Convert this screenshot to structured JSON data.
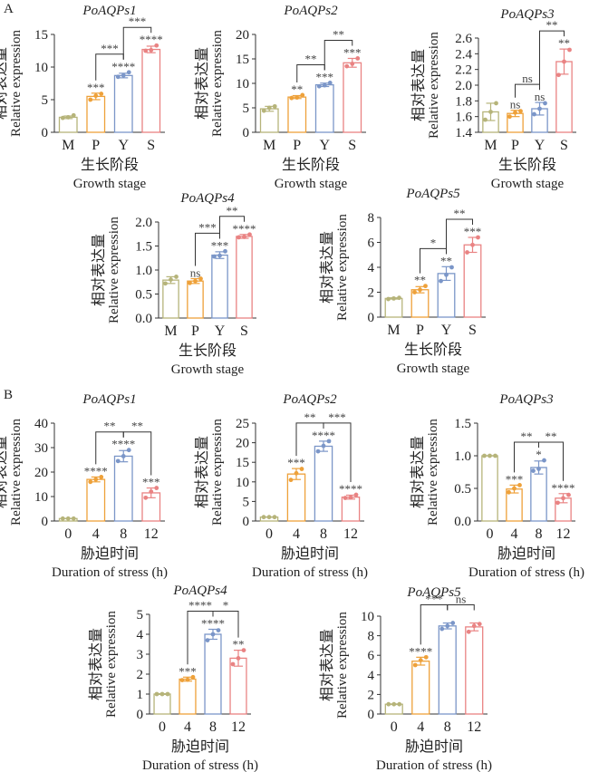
{
  "figure": {
    "panel_labels": [
      "A",
      "B"
    ]
  },
  "colors": {
    "M": "#b6b47a",
    "P": "#eea13a",
    "Y": "#7b96c8",
    "S": "#e98383",
    "0": "#b6b47a",
    "4": "#eea13a",
    "8": "#7b96c8",
    "12": "#e98383"
  },
  "chart_data": [
    {
      "panel": "A",
      "type": "bar",
      "title": "PoAQPs1",
      "categories": [
        "M",
        "P",
        "Y",
        "S"
      ],
      "values": [
        2.3,
        5.5,
        8.7,
        12.7
      ],
      "points": [
        [
          2.2,
          2.3,
          2.6
        ],
        [
          5.0,
          5.6,
          5.9
        ],
        [
          8.5,
          8.7,
          9.2
        ],
        [
          12.5,
          12.6,
          13.3
        ]
      ],
      "errors": [
        0.2,
        0.5,
        0.35,
        0.5
      ],
      "yticks": [
        0,
        5,
        10,
        15
      ],
      "ylim": [
        0,
        15
      ],
      "ylabel_cn": "相对表达量",
      "ylabel": "Relative expression",
      "xlabel_cn": "生长阶段",
      "xlabel": "Growth stage",
      "sig_above": [
        "",
        "***",
        "****",
        "****"
      ],
      "brackets": [
        {
          "from": 1,
          "to": 2,
          "label": "***"
        },
        {
          "from": 2,
          "to": 3,
          "label": "***"
        }
      ]
    },
    {
      "panel": "A",
      "type": "bar",
      "title": "PoAQPs2",
      "categories": [
        "M",
        "P",
        "Y",
        "S"
      ],
      "values": [
        4.8,
        7.2,
        9.7,
        14.2
      ],
      "points": [
        [
          4.4,
          5.0,
          5.3
        ],
        [
          7.0,
          7.1,
          7.6
        ],
        [
          9.4,
          9.6,
          10.1
        ],
        [
          13.5,
          14.0,
          15.1
        ]
      ],
      "errors": [
        0.5,
        0.3,
        0.35,
        0.9
      ],
      "yticks": [
        0,
        5,
        10,
        15,
        20
      ],
      "ylim": [
        0,
        20
      ],
      "ylabel_cn": "相对表达量",
      "ylabel": "Relative expression",
      "xlabel_cn": "生长阶段",
      "xlabel": "Growth stage",
      "sig_above": [
        "",
        "**",
        "***",
        "***"
      ],
      "brackets": [
        {
          "from": 1,
          "to": 2,
          "label": "**"
        },
        {
          "from": 2,
          "to": 3,
          "label": "**"
        }
      ]
    },
    {
      "panel": "A",
      "type": "bar",
      "title": "PoAQPs3",
      "categories": [
        "M",
        "P",
        "Y",
        "S"
      ],
      "values": [
        1.66,
        1.64,
        1.7,
        2.3
      ],
      "points": [
        [
          1.56,
          1.66,
          1.77
        ],
        [
          1.6,
          1.65,
          1.67
        ],
        [
          1.63,
          1.7,
          1.77
        ],
        [
          2.13,
          2.3,
          2.45
        ]
      ],
      "errors": [
        0.11,
        0.04,
        0.08,
        0.16
      ],
      "yticks": [
        1.4,
        1.6,
        1.8,
        2.0,
        2.2,
        2.4,
        2.6
      ],
      "ylim": [
        1.4,
        2.6
      ],
      "ylabel_cn": "相对表达量",
      "ylabel": "Relative expression",
      "xlabel_cn": "生长阶段",
      "xlabel": "Growth stage",
      "sig_above": [
        "",
        "ns",
        "ns",
        "**"
      ],
      "brackets": [
        {
          "from": 1,
          "to": 2,
          "label": "ns"
        },
        {
          "from": 2,
          "to": 3,
          "label": "**"
        }
      ]
    },
    {
      "panel": "A",
      "type": "bar",
      "title": "PoAQPs4",
      "categories": [
        "M",
        "P",
        "Y",
        "S"
      ],
      "values": [
        0.79,
        0.77,
        1.31,
        1.7
      ],
      "points": [
        [
          0.72,
          0.8,
          0.86
        ],
        [
          0.73,
          0.77,
          0.82
        ],
        [
          1.28,
          1.3,
          1.39
        ],
        [
          1.68,
          1.69,
          1.74
        ]
      ],
      "errors": [
        0.07,
        0.05,
        0.07,
        0.04
      ],
      "yticks": [
        0.0,
        0.5,
        1.0,
        1.5,
        2.0
      ],
      "ylim": [
        0,
        2.0
      ],
      "ylabel_cn": "相对表达量",
      "ylabel": "Relative expression",
      "xlabel_cn": "生长阶段",
      "xlabel": "Growth stage",
      "sig_above": [
        "",
        "ns",
        "***",
        "****"
      ],
      "brackets": [
        {
          "from": 1,
          "to": 2,
          "label": "***"
        },
        {
          "from": 2,
          "to": 3,
          "label": "**"
        }
      ]
    },
    {
      "panel": "A",
      "type": "bar",
      "title": "PoAQPs5",
      "categories": [
        "M",
        "P",
        "Y",
        "S"
      ],
      "values": [
        1.5,
        2.2,
        3.5,
        5.8
      ],
      "points": [
        [
          1.45,
          1.5,
          1.55
        ],
        [
          2.0,
          2.2,
          2.5
        ],
        [
          2.9,
          3.4,
          4.0
        ],
        [
          5.2,
          5.8,
          6.4
        ]
      ],
      "errors": [
        0.05,
        0.25,
        0.55,
        0.6
      ],
      "yticks": [
        0,
        2,
        4,
        6,
        8
      ],
      "ylim": [
        0,
        8
      ],
      "ylabel_cn": "相对表达量",
      "ylabel": "Relative expression",
      "xlabel_cn": "生长阶段",
      "xlabel": "Growth stage",
      "sig_above": [
        "",
        "**",
        "**",
        "***"
      ],
      "brackets": [
        {
          "from": 1,
          "to": 2,
          "label": "*"
        },
        {
          "from": 2,
          "to": 3,
          "label": "**"
        }
      ]
    },
    {
      "panel": "B",
      "type": "bar",
      "title": "PoAQPs1",
      "categories": [
        "0",
        "4",
        "8",
        "12"
      ],
      "values": [
        1.0,
        17.0,
        26.5,
        11.5
      ],
      "points": [
        [
          1.0,
          1.0,
          1.0
        ],
        [
          16.0,
          17.0,
          18.0
        ],
        [
          24.5,
          26.5,
          29.0
        ],
        [
          9.5,
          12.0,
          13.5
        ]
      ],
      "errors": [
        0.05,
        1.0,
        2.3,
        2.0
      ],
      "yticks": [
        0,
        10,
        20,
        30,
        40
      ],
      "ylim": [
        0,
        40
      ],
      "ylabel_cn": "相对表达量",
      "ylabel": "Relative expression",
      "xlabel_cn": "胁迫时间",
      "xlabel": "Duration of stress (h)",
      "sig_above": [
        "",
        "****",
        "****",
        "***"
      ],
      "brackets": [
        {
          "from": 1,
          "to": 2,
          "label": "**"
        },
        {
          "from": 2,
          "to": 3,
          "label": "**"
        }
      ]
    },
    {
      "panel": "B",
      "type": "bar",
      "title": "PoAQPs2",
      "categories": [
        "0",
        "4",
        "8",
        "12"
      ],
      "values": [
        1.0,
        12.0,
        19.1,
        6.1
      ],
      "points": [
        [
          1.0,
          1.0,
          1.0
        ],
        [
          10.5,
          12.2,
          13.3
        ],
        [
          17.8,
          19.2,
          20.4
        ],
        [
          5.9,
          6.0,
          6.7
        ]
      ],
      "errors": [
        0.05,
        1.4,
        1.3,
        0.5
      ],
      "yticks": [
        0,
        5,
        10,
        15,
        20,
        25
      ],
      "ylim": [
        0,
        25
      ],
      "ylabel_cn": "相对表达量",
      "ylabel": "Relative expression",
      "xlabel_cn": "胁迫时间",
      "xlabel": "Duration of stress (h)",
      "sig_above": [
        "",
        "***",
        "****",
        "****"
      ],
      "brackets": [
        {
          "from": 1,
          "to": 2,
          "label": "**"
        },
        {
          "from": 2,
          "to": 3,
          "label": "***"
        }
      ]
    },
    {
      "panel": "B",
      "type": "bar",
      "title": "PoAQPs3",
      "categories": [
        "0",
        "4",
        "8",
        "12"
      ],
      "values": [
        1.0,
        0.49,
        0.82,
        0.35
      ],
      "points": [
        [
          1.0,
          1.0,
          1.0
        ],
        [
          0.44,
          0.5,
          0.55
        ],
        [
          0.77,
          0.8,
          0.93
        ],
        [
          0.28,
          0.35,
          0.4
        ]
      ],
      "errors": [
        0.0,
        0.06,
        0.1,
        0.07
      ],
      "yticks": [
        0.0,
        0.5,
        1.0,
        1.5
      ],
      "ylim": [
        0,
        1.5
      ],
      "ylabel_cn": "相对表达量",
      "ylabel": "Relative expression",
      "xlabel_cn": "胁迫时间",
      "xlabel": "Duration of stress (h)",
      "sig_above": [
        "",
        "***",
        "*",
        "****"
      ],
      "brackets": [
        {
          "from": 1,
          "to": 2,
          "label": "**"
        },
        {
          "from": 2,
          "to": 3,
          "label": "**"
        }
      ]
    },
    {
      "panel": "B",
      "type": "bar",
      "title": "PoAQPs4",
      "categories": [
        "0",
        "4",
        "8",
        "12"
      ],
      "values": [
        1.0,
        1.75,
        4.0,
        2.8
      ],
      "points": [
        [
          1.0,
          1.0,
          1.0
        ],
        [
          1.7,
          1.72,
          1.85
        ],
        [
          3.7,
          4.0,
          4.2
        ],
        [
          2.5,
          2.8,
          3.2
        ]
      ],
      "errors": [
        0.02,
        0.1,
        0.25,
        0.4
      ],
      "yticks": [
        0,
        1,
        2,
        3,
        4,
        5
      ],
      "ylim": [
        0,
        5
      ],
      "ylabel_cn": "相对表达量",
      "ylabel": "Relative expression",
      "xlabel_cn": "胁迫时间",
      "xlabel": "Duration of stress (h)",
      "sig_above": [
        "",
        "***",
        "****",
        "**"
      ],
      "brackets": [
        {
          "from": 1,
          "to": 2,
          "label": "****"
        },
        {
          "from": 2,
          "to": 3,
          "label": "*"
        }
      ]
    },
    {
      "panel": "B",
      "type": "bar",
      "title": "PoAQPs5",
      "categories": [
        "0",
        "4",
        "8",
        "12"
      ],
      "values": [
        1.0,
        5.4,
        9.0,
        8.9
      ],
      "points": [
        [
          1.0,
          1.0,
          1.0
        ],
        [
          5.0,
          5.5,
          5.8
        ],
        [
          8.7,
          9.0,
          9.3
        ],
        [
          8.4,
          9.0,
          9.2
        ]
      ],
      "errors": [
        0.03,
        0.4,
        0.3,
        0.4
      ],
      "yticks": [
        0,
        2,
        4,
        6,
        8,
        10
      ],
      "ylim": [
        0,
        10
      ],
      "ylabel_cn": "相对表达量",
      "ylabel": "Relative expression",
      "xlabel_cn": "胁迫时间",
      "xlabel": "Duration of stress (h)",
      "sig_above": [
        "",
        "****",
        "",
        ""
      ],
      "brackets": [
        {
          "from": 1,
          "to": 2,
          "label": "***"
        },
        {
          "from": 2,
          "to": 3,
          "label": "ns"
        }
      ]
    }
  ]
}
